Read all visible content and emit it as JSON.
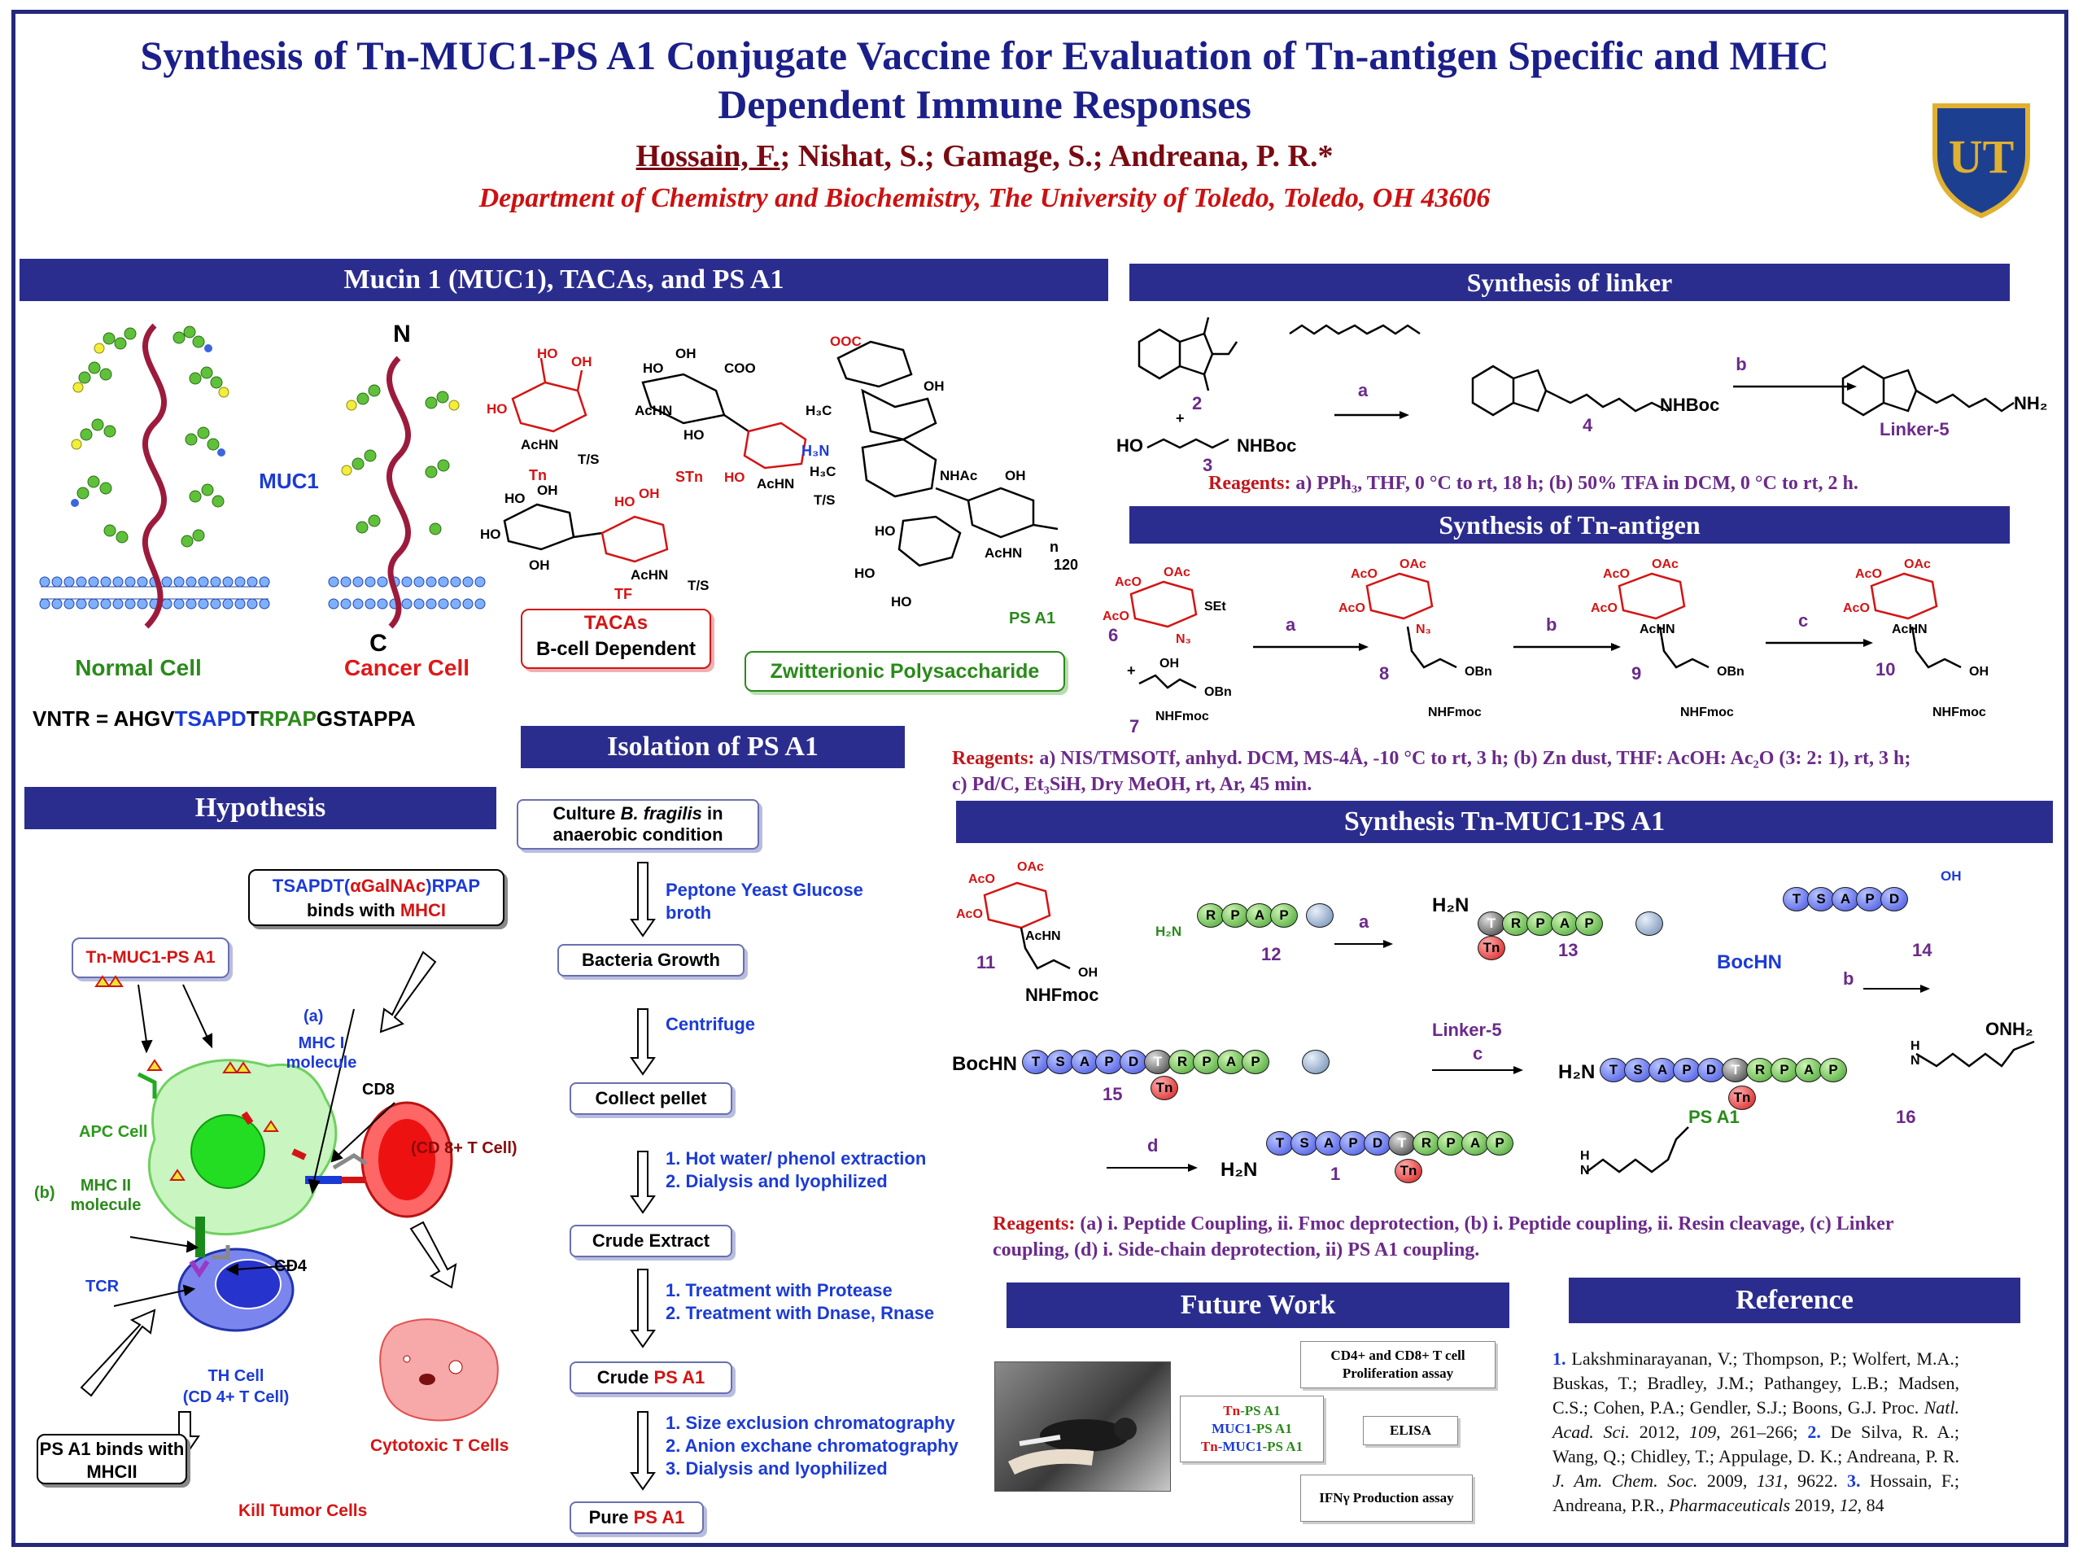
{
  "header": {
    "title": "Synthesis of Tn-MUC1-PS A1 Conjugate Vaccine for Evaluation of Tn-antigen Specific and MHC Dependent Immune Responses",
    "author_first": "Hossain, F.",
    "authors_rest": "; Nishat, S.; Gamage, S.; Andreana, P. R.*",
    "affiliation": "Department of Chemistry and Biochemistry, The University of Toledo, Toledo, OH 43606",
    "logo_text": "UT",
    "colors": {
      "navy": "#2b2d8e",
      "gold": "#e0b030"
    }
  },
  "muc1": {
    "banner": "Mucin 1 (MUC1), TACAs, and PS A1",
    "n_label": "N",
    "c_label": "C",
    "muc1_label": "MUC1",
    "normal_cell": "Normal Cell",
    "cancer_cell": "Cancer Cell",
    "vntr_prefix": "VNTR = AHGV",
    "vntr_blue": "TSAPD",
    "vntr_t": "T",
    "vntr_green": "RPAP",
    "vntr_suffix": "GSTAPPA",
    "tn": "Tn",
    "stn": "STn",
    "tf": "TF",
    "ts": "T/S",
    "tacas_title": "TACAs",
    "tacas_sub": "B-cell Dependent",
    "ps_a1_label": "PS A1",
    "zwitter": "Zwitterionic Polysaccharide",
    "n_repeat": "n",
    "repeat": "120",
    "chem": {
      "oh": "OH",
      "ho": "HO",
      "achn": "AcHN",
      "nhac": "NHAc",
      "coo": "COO",
      "ooc": "OOC",
      "h3n": "H₃N",
      "h3c": "H₃C",
      "o": "O"
    }
  },
  "linker": {
    "banner": "Synthesis of linker",
    "c2": "2",
    "c3": "3",
    "c4": "4",
    "c5": "Linker-5",
    "a": "a",
    "b": "b",
    "plus": "+",
    "ho_chain": "HO",
    "nhboc": "NHBoc",
    "nh2": "NH₂",
    "reagents_label": "Reagents:",
    "reagents": " a) PPh₃, THF, 0 °C to rt, 18 h; (b) 50% TFA in DCM, 0 °C to rt, 2 h."
  },
  "tn": {
    "banner": "Synthesis of Tn-antigen",
    "c6": "6",
    "c7": "7",
    "c8": "8",
    "c9": "9",
    "c10": "10",
    "a": "a",
    "b": "b",
    "c": "c",
    "plus": "+",
    "aco": "AcO",
    "oac": "OAc",
    "set": "SEt",
    "n3": "N₃",
    "achn": "AcHN",
    "oh": "OH",
    "obn": "OBn",
    "nhfmoc": "NHFmoc",
    "reagents_label": "Reagents:",
    "reagents_l1": " a) NIS/TMSOTf, anhyd. DCM, MS-4Å, -10 °C to rt, 3 h; (b) Zn dust, THF: AcOH: Ac₂O (3: 2: 1), rt, 3 h;",
    "reagents_l2": "c) Pd/C, Et₃SiH, Dry MeOH, rt, Ar, 45 min."
  },
  "conj": {
    "banner": "Synthesis Tn-MUC1-PS A1",
    "c11": "11",
    "c12": "12",
    "c13": "13",
    "c14": "14",
    "c15": "15",
    "c16": "16",
    "c1": "1",
    "a": "a",
    "b": "b",
    "c": "c",
    "d": "d",
    "linker5": "Linker-5",
    "h2n": "H₂N",
    "bochn": "BocHN",
    "onh2": "ONH₂",
    "ps_a1": "PS A1",
    "nhfmoc": "NHFmoc",
    "oh": "OH",
    "aco": "AcO",
    "oac": "OAc",
    "achn": "AcHN",
    "h": "H",
    "n": "N",
    "o": "O",
    "beads": {
      "T": "T",
      "S": "S",
      "A": "A",
      "P": "P",
      "D": "D",
      "R": "R",
      "Tn": "Tn"
    },
    "reagents_label": "Reagents:",
    "reagents_l1": " (a) i. Peptide Coupling, ii. Fmoc deprotection, (b) i. Peptide coupling, ii. Resin cleavage,  (c) Linker",
    "reagents_l2": "coupling, (d) i. Side-chain deprotection, ii) PS A1 coupling."
  },
  "isolation": {
    "banner": "Isolation of PS A1",
    "box1_pre": "Culture ",
    "box1_italic": "B. fragilis",
    "box1_post": " in anaerobic condition",
    "step1": "Peptone Yeast Glucose broth",
    "box2": "Bacteria Growth",
    "step2": "Centrifuge",
    "box3": "Collect pellet",
    "step3a": "1. Hot water/ phenol extraction",
    "step3b": "2. Dialysis and lyophilized",
    "box4": "Crude Extract",
    "step4a": "1. Treatment with Protease",
    "step4b": "2. Treatment with Dnase, Rnase",
    "box5_pre": "Crude ",
    "box5_red": "PS A1",
    "step5a": "1. Size exclusion chromatography",
    "step5b": "2. Anion exchane chromatography",
    "step5c": "3. Dialysis and lyophilized",
    "box6_pre": "Pure ",
    "box6_red": "PS A1"
  },
  "hypothesis": {
    "banner": "Hypothesis",
    "tsapdt_pre": "TSAPDT(",
    "tsapdt_red": "αGalNAc",
    "tsapdt_post": ")RPAP",
    "binds": "binds with ",
    "mhci": "MHCI",
    "vaccine": "Tn-MUC1-PS A1",
    "a_label": "(a)",
    "mhc1_molecule": "MHC I molecule",
    "cd8": "CD8",
    "cd8_cell": "(CD 8+ T Cell)",
    "apc": "APC Cell",
    "b_label": "(b)",
    "mhc2_molecule": "MHC II molecule",
    "tcr": "TCR",
    "cd4": "CD4",
    "th_cell": "TH Cell",
    "th_sub": "(CD 4+ T Cell)",
    "ps_binds": "PS A1 binds with MHCII",
    "cytotoxic": "Cytotoxic T Cells",
    "kill": "Kill Tumor Cells"
  },
  "future": {
    "banner": "Future Work",
    "assay1": "CD4+  and CD8+ T cell Proliferation assay",
    "tn_ps": "Tn-PS A1",
    "muc1_ps": "MUC1-PS A1",
    "tn_muc1_ps": "Tn-MUC1-PS A1",
    "elisa": "ELISA",
    "ifn": "IFNγ Production assay"
  },
  "reference": {
    "banner": "Reference",
    "r1_num": "1.",
    "r1_text": " Lakshminarayanan, V.; Thompson, P.; Wolfert, M.A.; Buskas, T.; Bradley, J.M.; Pathangey, L.B.; Madsen, C.S.; Cohen, P.A.; Gendler, S.J.; Boons, G.J. Proc. ",
    "r1_journal": "Natl. Acad. Sci.",
    "r1_year": " 2012, ",
    "r1_vol": "109",
    "r1_pages": ", 261–266; ",
    "r2_num": "2.",
    "r2_text": " De Silva, R. A.; Wang, Q.; Chidley, T.; Appulage, D. K.; Andreana, P. R. ",
    "r2_journal": "J. Am. Chem. Soc.",
    "r2_year": " 2009, ",
    "r2_vol": "131",
    "r2_pages": ", 9622. ",
    "r3_num": "3.",
    "r3_text": " Hossain, F.; Andreana, P.R., ",
    "r3_journal": "Pharmaceuticals",
    "r3_year": " 2019, ",
    "r3_vol": "12",
    "r3_pages": ", 84"
  }
}
